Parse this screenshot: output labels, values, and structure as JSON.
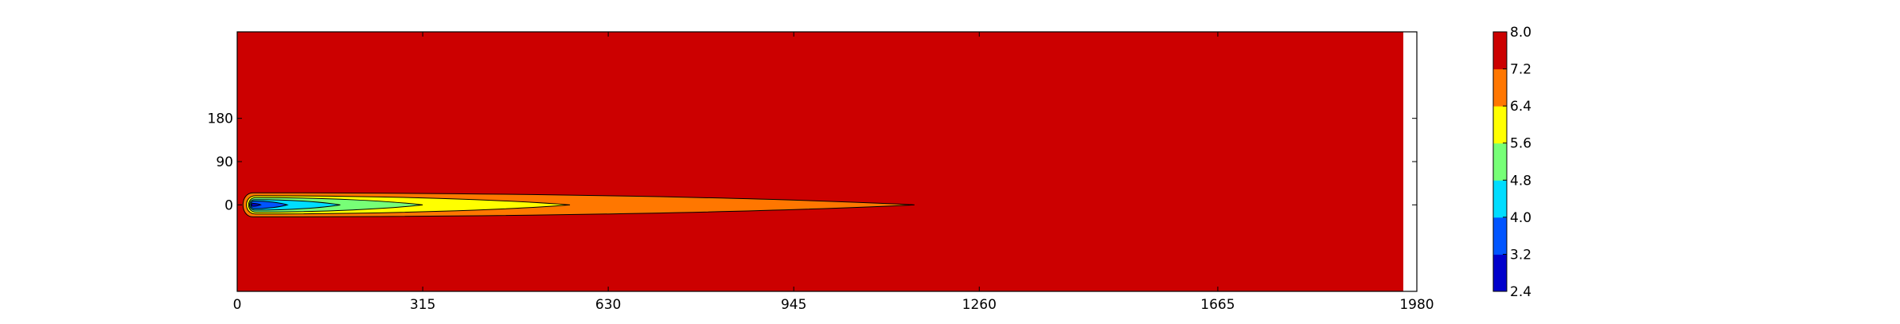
{
  "chart_data": {
    "type": "contour",
    "title": "",
    "xlabel": "",
    "ylabel": "",
    "xlim": [
      0,
      1980
    ],
    "ylim": [
      -180,
      360
    ],
    "x_ticks": [
      0,
      315,
      630,
      945,
      1260,
      1665,
      1980
    ],
    "y_ticks": [
      0,
      90,
      180
    ],
    "colorbar": {
      "levels": [
        2.4,
        3.2,
        4.0,
        4.8,
        5.6,
        6.4,
        7.2,
        8.0
      ],
      "tick_labels": [
        "2.4",
        "3.2",
        "4.0",
        "4.8",
        "5.6",
        "6.4",
        "7.2",
        "8.0"
      ],
      "colors": [
        "#0000cc",
        "#0055ff",
        "#00ddff",
        "#77ff77",
        "#ffff00",
        "#ff7700",
        "#cc0000"
      ]
    },
    "background_level_color": "#cc0000",
    "contour_regions": [
      {
        "level_range": [
          6.4,
          7.2
        ],
        "color": "#ff7700",
        "x_start": 8,
        "x_end": 1150,
        "y_half_width": 25
      },
      {
        "level_range": [
          5.6,
          6.4
        ],
        "color": "#ffff00",
        "x_start": 14,
        "x_end": 565,
        "y_half_width": 19
      },
      {
        "level_range": [
          4.8,
          5.6
        ],
        "color": "#77ff77",
        "x_start": 18,
        "x_end": 315,
        "y_half_width": 15
      },
      {
        "level_range": [
          4.0,
          4.8
        ],
        "color": "#00ddff",
        "x_start": 20,
        "x_end": 175,
        "y_half_width": 11
      },
      {
        "level_range": [
          3.2,
          4.0
        ],
        "color": "#0055ff",
        "x_start": 22,
        "x_end": 85,
        "y_half_width": 8
      },
      {
        "level_range": [
          2.4,
          3.2
        ],
        "color": "#0000cc",
        "x_start": 24,
        "x_end": 40,
        "y_half_width": 3
      }
    ],
    "grid": false
  }
}
